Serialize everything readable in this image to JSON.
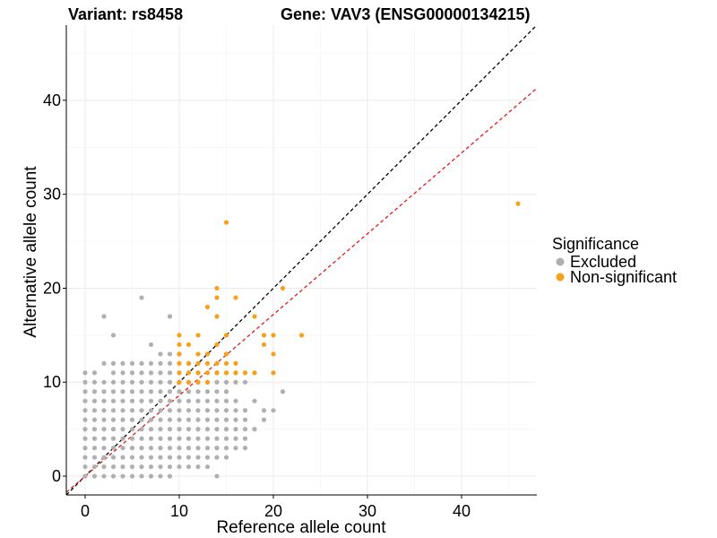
{
  "chart_data": {
    "type": "scatter",
    "title_left": "Variant: rs8458",
    "title_right": "Gene: VAV3 (ENSG00000134215)",
    "xlabel": "Reference allele count",
    "ylabel": "Alternative allele count",
    "xlim": [
      -2,
      48
    ],
    "ylim": [
      -2,
      48
    ],
    "xticks": [
      0,
      10,
      20,
      30,
      40
    ],
    "yticks": [
      0,
      10,
      20,
      30,
      40
    ],
    "grid": true,
    "legend": {
      "title": "Significance",
      "position": "right",
      "entries": [
        {
          "name": "Excluded",
          "color": "#b0b0b0"
        },
        {
          "name": "Non-significant",
          "color": "#f7a11a"
        }
      ]
    },
    "reference_lines": [
      {
        "slope": 1,
        "intercept": 0,
        "color": "#000000",
        "style": "dashed"
      },
      {
        "slope": 0.86,
        "intercept": 0,
        "color": "#e41a1c",
        "style": "dashed"
      }
    ],
    "series": [
      {
        "name": "Excluded",
        "color": "#b0b0b0",
        "points": [
          [
            0,
            0
          ],
          [
            0,
            1
          ],
          [
            0,
            2
          ],
          [
            0,
            3
          ],
          [
            0,
            4
          ],
          [
            0,
            5
          ],
          [
            0,
            6
          ],
          [
            0,
            7
          ],
          [
            0,
            8
          ],
          [
            0,
            9
          ],
          [
            0,
            10
          ],
          [
            0,
            11
          ],
          [
            1,
            0
          ],
          [
            1,
            1
          ],
          [
            1,
            2
          ],
          [
            1,
            3
          ],
          [
            1,
            4
          ],
          [
            1,
            5
          ],
          [
            1,
            6
          ],
          [
            1,
            7
          ],
          [
            1,
            8
          ],
          [
            1,
            9
          ],
          [
            1,
            10
          ],
          [
            1,
            11
          ],
          [
            2,
            0
          ],
          [
            2,
            1
          ],
          [
            2,
            2
          ],
          [
            2,
            3
          ],
          [
            2,
            4
          ],
          [
            2,
            5
          ],
          [
            2,
            6
          ],
          [
            2,
            7
          ],
          [
            2,
            8
          ],
          [
            2,
            9
          ],
          [
            2,
            10
          ],
          [
            2,
            12
          ],
          [
            2,
            17
          ],
          [
            3,
            0
          ],
          [
            3,
            1
          ],
          [
            3,
            2
          ],
          [
            3,
            3
          ],
          [
            3,
            4
          ],
          [
            3,
            5
          ],
          [
            3,
            6
          ],
          [
            3,
            7
          ],
          [
            3,
            8
          ],
          [
            3,
            9
          ],
          [
            3,
            10
          ],
          [
            3,
            11
          ],
          [
            3,
            12
          ],
          [
            3,
            15
          ],
          [
            4,
            0
          ],
          [
            4,
            1
          ],
          [
            4,
            2
          ],
          [
            4,
            3
          ],
          [
            4,
            4
          ],
          [
            4,
            5
          ],
          [
            4,
            6
          ],
          [
            4,
            7
          ],
          [
            4,
            8
          ],
          [
            4,
            9
          ],
          [
            4,
            10
          ],
          [
            4,
            11
          ],
          [
            4,
            12
          ],
          [
            5,
            0
          ],
          [
            5,
            1
          ],
          [
            5,
            2
          ],
          [
            5,
            3
          ],
          [
            5,
            4
          ],
          [
            5,
            5
          ],
          [
            5,
            6
          ],
          [
            5,
            7
          ],
          [
            5,
            8
          ],
          [
            5,
            9
          ],
          [
            5,
            10
          ],
          [
            5,
            11
          ],
          [
            5,
            12
          ],
          [
            6,
            0
          ],
          [
            6,
            1
          ],
          [
            6,
            2
          ],
          [
            6,
            3
          ],
          [
            6,
            4
          ],
          [
            6,
            5
          ],
          [
            6,
            6
          ],
          [
            6,
            7
          ],
          [
            6,
            8
          ],
          [
            6,
            9
          ],
          [
            6,
            10
          ],
          [
            6,
            11
          ],
          [
            6,
            12
          ],
          [
            6,
            19
          ],
          [
            7,
            0
          ],
          [
            7,
            1
          ],
          [
            7,
            2
          ],
          [
            7,
            3
          ],
          [
            7,
            4
          ],
          [
            7,
            5
          ],
          [
            7,
            6
          ],
          [
            7,
            7
          ],
          [
            7,
            8
          ],
          [
            7,
            9
          ],
          [
            7,
            10
          ],
          [
            7,
            11
          ],
          [
            7,
            12
          ],
          [
            7,
            14
          ],
          [
            8,
            0
          ],
          [
            8,
            1
          ],
          [
            8,
            2
          ],
          [
            8,
            3
          ],
          [
            8,
            4
          ],
          [
            8,
            5
          ],
          [
            8,
            6
          ],
          [
            8,
            7
          ],
          [
            8,
            8
          ],
          [
            8,
            9
          ],
          [
            8,
            10
          ],
          [
            8,
            11
          ],
          [
            8,
            12
          ],
          [
            8,
            13
          ],
          [
            9,
            0
          ],
          [
            9,
            1
          ],
          [
            9,
            2
          ],
          [
            9,
            3
          ],
          [
            9,
            4
          ],
          [
            9,
            5
          ],
          [
            9,
            6
          ],
          [
            9,
            7
          ],
          [
            9,
            8
          ],
          [
            9,
            9
          ],
          [
            9,
            10
          ],
          [
            9,
            11
          ],
          [
            9,
            12
          ],
          [
            9,
            13
          ],
          [
            9,
            17
          ],
          [
            10,
            1
          ],
          [
            10,
            2
          ],
          [
            10,
            3
          ],
          [
            10,
            4
          ],
          [
            10,
            5
          ],
          [
            10,
            6
          ],
          [
            10,
            7
          ],
          [
            10,
            8
          ],
          [
            10,
            9
          ],
          [
            10,
            10
          ],
          [
            10,
            13
          ],
          [
            11,
            1
          ],
          [
            11,
            2
          ],
          [
            11,
            3
          ],
          [
            11,
            4
          ],
          [
            11,
            5
          ],
          [
            11,
            6
          ],
          [
            11,
            7
          ],
          [
            11,
            8
          ],
          [
            11,
            9
          ],
          [
            11,
            10
          ],
          [
            11,
            12
          ],
          [
            12,
            1
          ],
          [
            12,
            2
          ],
          [
            12,
            3
          ],
          [
            12,
            4
          ],
          [
            12,
            5
          ],
          [
            12,
            6
          ],
          [
            12,
            7
          ],
          [
            12,
            8
          ],
          [
            12,
            9
          ],
          [
            12,
            10
          ],
          [
            12,
            11
          ],
          [
            13,
            1
          ],
          [
            13,
            2
          ],
          [
            13,
            3
          ],
          [
            13,
            4
          ],
          [
            13,
            5
          ],
          [
            13,
            6
          ],
          [
            13,
            7
          ],
          [
            13,
            8
          ],
          [
            13,
            9
          ],
          [
            13,
            10
          ],
          [
            14,
            0
          ],
          [
            14,
            2
          ],
          [
            14,
            3
          ],
          [
            14,
            4
          ],
          [
            14,
            5
          ],
          [
            14,
            6
          ],
          [
            14,
            7
          ],
          [
            14,
            8
          ],
          [
            14,
            9
          ],
          [
            14,
            10
          ],
          [
            14,
            11
          ],
          [
            15,
            2
          ],
          [
            15,
            3
          ],
          [
            15,
            4
          ],
          [
            15,
            5
          ],
          [
            15,
            6
          ],
          [
            15,
            7
          ],
          [
            15,
            8
          ],
          [
            15,
            9
          ],
          [
            15,
            10
          ],
          [
            15,
            11
          ],
          [
            16,
            3
          ],
          [
            16,
            4
          ],
          [
            16,
            5
          ],
          [
            16,
            6
          ],
          [
            16,
            7
          ],
          [
            16,
            8
          ],
          [
            16,
            10
          ],
          [
            16,
            11
          ],
          [
            17,
            3
          ],
          [
            17,
            4
          ],
          [
            17,
            5
          ],
          [
            17,
            6
          ],
          [
            17,
            7
          ],
          [
            17,
            10
          ],
          [
            17,
            11
          ],
          [
            18,
            5
          ],
          [
            18,
            8
          ],
          [
            19,
            6
          ],
          [
            19,
            7
          ],
          [
            20,
            7
          ],
          [
            21,
            9
          ]
        ]
      },
      {
        "name": "Non-significant",
        "color": "#f7a11a",
        "points": [
          [
            10,
            10
          ],
          [
            10,
            11
          ],
          [
            10,
            12
          ],
          [
            10,
            13
          ],
          [
            10,
            14
          ],
          [
            10,
            15
          ],
          [
            11,
            10
          ],
          [
            11,
            11
          ],
          [
            11,
            12
          ],
          [
            11,
            14
          ],
          [
            12,
            10
          ],
          [
            12,
            11
          ],
          [
            12,
            12
          ],
          [
            12,
            13
          ],
          [
            12,
            15
          ],
          [
            13,
            10
          ],
          [
            13,
            11
          ],
          [
            13,
            12
          ],
          [
            13,
            13
          ],
          [
            13,
            18
          ],
          [
            14,
            11
          ],
          [
            14,
            12
          ],
          [
            14,
            14
          ],
          [
            14,
            17
          ],
          [
            14,
            19
          ],
          [
            14,
            20
          ],
          [
            15,
            11
          ],
          [
            15,
            12
          ],
          [
            15,
            13
          ],
          [
            15,
            15
          ],
          [
            15,
            27
          ],
          [
            16,
            11
          ],
          [
            16,
            12
          ],
          [
            16,
            19
          ],
          [
            17,
            11
          ],
          [
            18,
            11
          ],
          [
            18,
            17
          ],
          [
            19,
            14
          ],
          [
            19,
            15
          ],
          [
            20,
            11
          ],
          [
            20,
            13
          ],
          [
            20,
            15
          ],
          [
            21,
            20
          ],
          [
            23,
            15
          ],
          [
            46,
            29
          ]
        ]
      }
    ]
  }
}
